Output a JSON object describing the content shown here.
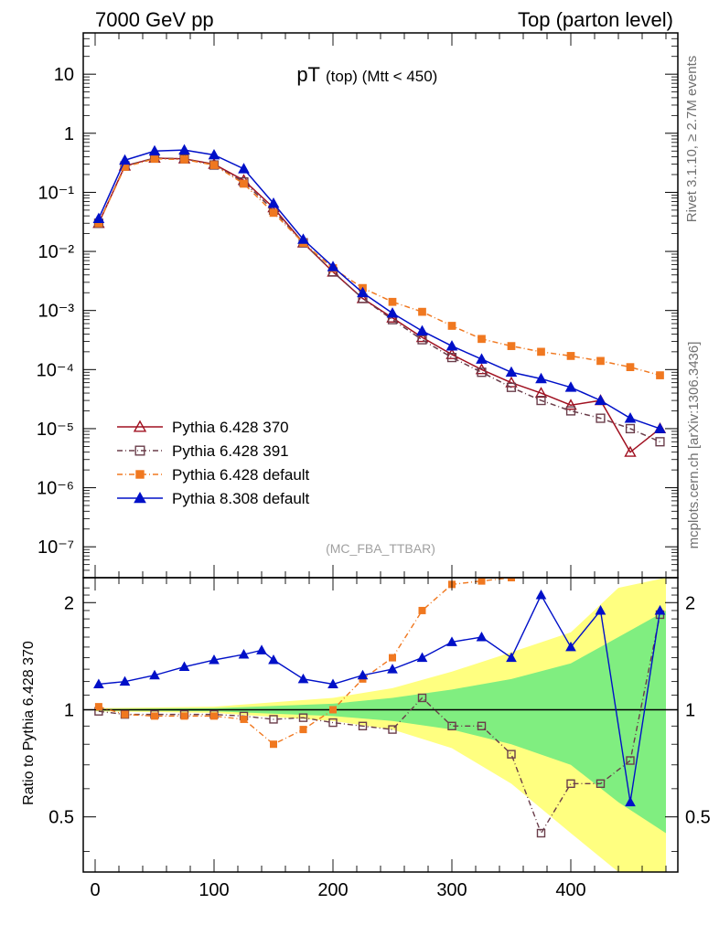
{
  "header": {
    "left": "7000 GeV pp",
    "right": "Top (parton level)"
  },
  "side_labels": {
    "rivet": "Rivet 3.1.10, ≥ 2.7M events",
    "mcplots": "mcplots.cern.ch [arXiv:1306.3436]"
  },
  "chart_data": [
    {
      "type": "line",
      "title_main": "pT",
      "title_sub": "(top) (Mtt < 450)",
      "watermark": "(MC_FBA_TTBAR)",
      "y_scale": "log",
      "xlim": [
        -10,
        490
      ],
      "ylim": [
        3e-08,
        50
      ],
      "y_ticks": [
        {
          "value": 10,
          "label": "10"
        },
        {
          "value": 1,
          "label": "1"
        },
        {
          "value": 0.1,
          "label": "10⁻¹"
        },
        {
          "value": 0.01,
          "label": "10⁻²"
        },
        {
          "value": 0.001,
          "label": "10⁻³"
        },
        {
          "value": 0.0001,
          "label": "10⁻⁴"
        },
        {
          "value": 1e-05,
          "label": "10⁻⁵"
        },
        {
          "value": 1e-06,
          "label": "10⁻⁶"
        },
        {
          "value": 1e-07,
          "label": "10⁻⁷"
        }
      ],
      "legend_position": "lower-left",
      "series": [
        {
          "name": "Pythia 6.428 370",
          "color": "#a01020",
          "marker": "open-triangle",
          "line": "solid",
          "x": [
            3,
            25,
            50,
            75,
            100,
            125,
            150,
            175,
            200,
            225,
            250,
            275,
            300,
            325,
            350,
            375,
            400,
            425,
            450,
            475
          ],
          "y": [
            0.03,
            0.28,
            0.38,
            0.37,
            0.3,
            0.16,
            0.055,
            0.014,
            0.0045,
            0.0016,
            0.00075,
            0.00035,
            0.00018,
            0.0001,
            6e-05,
            4e-05,
            2.5e-05,
            3e-05,
            4e-06,
            1e-05
          ]
        },
        {
          "name": "Pythia 6.428 391",
          "color": "#6a3d4a",
          "marker": "open-square",
          "line": "dash-dot",
          "x": [
            3,
            25,
            50,
            75,
            100,
            125,
            150,
            175,
            200,
            225,
            250,
            275,
            300,
            325,
            350,
            375,
            400,
            425,
            450,
            475
          ],
          "y": [
            0.03,
            0.28,
            0.38,
            0.37,
            0.29,
            0.15,
            0.05,
            0.014,
            0.0045,
            0.0016,
            0.0007,
            0.00032,
            0.00016,
            9e-05,
            5e-05,
            3e-05,
            2e-05,
            1.5e-05,
            1e-05,
            6e-06
          ]
        },
        {
          "name": "Pythia 6.428 default",
          "color": "#f07820",
          "marker": "filled-square",
          "line": "dash-dot",
          "x": [
            3,
            25,
            50,
            75,
            100,
            125,
            150,
            175,
            200,
            225,
            250,
            275,
            300,
            325,
            350,
            375,
            400,
            425,
            450,
            475
          ],
          "y": [
            0.03,
            0.27,
            0.37,
            0.36,
            0.29,
            0.14,
            0.045,
            0.014,
            0.0052,
            0.0024,
            0.0014,
            0.00095,
            0.00055,
            0.00033,
            0.00025,
            0.0002,
            0.00017,
            0.00014,
            0.00011,
            8e-05
          ]
        },
        {
          "name": "Pythia 8.308 default",
          "color": "#0010c8",
          "marker": "filled-triangle",
          "line": "solid",
          "x": [
            3,
            25,
            50,
            75,
            100,
            125,
            150,
            175,
            200,
            225,
            250,
            275,
            300,
            325,
            350,
            375,
            400,
            425,
            450,
            475
          ],
          "y": [
            0.036,
            0.35,
            0.5,
            0.52,
            0.43,
            0.25,
            0.065,
            0.016,
            0.0055,
            0.002,
            0.0009,
            0.00045,
            0.00025,
            0.00015,
            9e-05,
            7e-05,
            5e-05,
            3e-05,
            1.5e-05,
            1e-05
          ]
        }
      ]
    },
    {
      "type": "line",
      "ylabel": "Ratio to Pythia 6.428 370",
      "y_scale": "log",
      "xlim": [
        -10,
        490
      ],
      "ylim": [
        0.35,
        2.35
      ],
      "x_ticks": [
        0,
        100,
        200,
        300,
        400
      ],
      "y_ticks": [
        {
          "value": 0.5,
          "label": "0.5"
        },
        {
          "value": 1,
          "label": "1"
        },
        {
          "value": 2,
          "label": "2"
        }
      ],
      "reference_line": 1,
      "band": {
        "x": [
          0,
          100,
          200,
          250,
          300,
          350,
          400,
          440,
          480
        ],
        "yellow_lo": [
          0.99,
          0.98,
          0.93,
          0.88,
          0.78,
          0.62,
          0.45,
          0.35,
          0.35
        ],
        "yellow_hi": [
          1.01,
          1.02,
          1.08,
          1.15,
          1.28,
          1.45,
          1.65,
          2.2,
          2.35
        ],
        "green_lo": [
          0.995,
          0.99,
          0.96,
          0.93,
          0.88,
          0.8,
          0.7,
          0.55,
          0.45
        ],
        "green_hi": [
          1.005,
          1.01,
          1.04,
          1.08,
          1.14,
          1.22,
          1.35,
          1.6,
          1.9
        ]
      },
      "series": [
        {
          "name": "Pythia 6.428 391",
          "color": "#6a3d4a",
          "x": [
            3,
            25,
            50,
            75,
            100,
            125,
            150,
            175,
            200,
            225,
            250,
            275,
            300,
            325,
            350,
            375,
            400,
            425,
            450,
            475
          ],
          "y": [
            0.99,
            0.97,
            0.97,
            0.97,
            0.97,
            0.96,
            0.94,
            0.95,
            0.92,
            0.9,
            0.88,
            1.08,
            0.9,
            0.9,
            0.75,
            0.45,
            0.62,
            0.62,
            0.72,
            1.85
          ]
        },
        {
          "name": "Pythia 6.428 default",
          "color": "#f07820",
          "x": [
            3,
            25,
            50,
            75,
            100,
            125,
            150,
            175,
            200,
            225,
            250,
            275,
            300,
            325,
            350
          ],
          "y": [
            1.02,
            0.97,
            0.96,
            0.96,
            0.96,
            0.94,
            0.8,
            0.88,
            1.0,
            1.22,
            1.4,
            1.9,
            2.25,
            2.3,
            2.35
          ]
        },
        {
          "name": "Pythia 8.308 default",
          "color": "#0010c8",
          "x": [
            3,
            25,
            50,
            75,
            100,
            125,
            140,
            150,
            175,
            200,
            225,
            250,
            275,
            300,
            325,
            350,
            375,
            400,
            425,
            450,
            475
          ],
          "y": [
            1.18,
            1.2,
            1.25,
            1.32,
            1.38,
            1.43,
            1.47,
            1.38,
            1.22,
            1.18,
            1.25,
            1.3,
            1.4,
            1.55,
            1.6,
            1.4,
            2.1,
            1.5,
            1.9,
            0.55,
            1.9
          ]
        }
      ]
    }
  ]
}
